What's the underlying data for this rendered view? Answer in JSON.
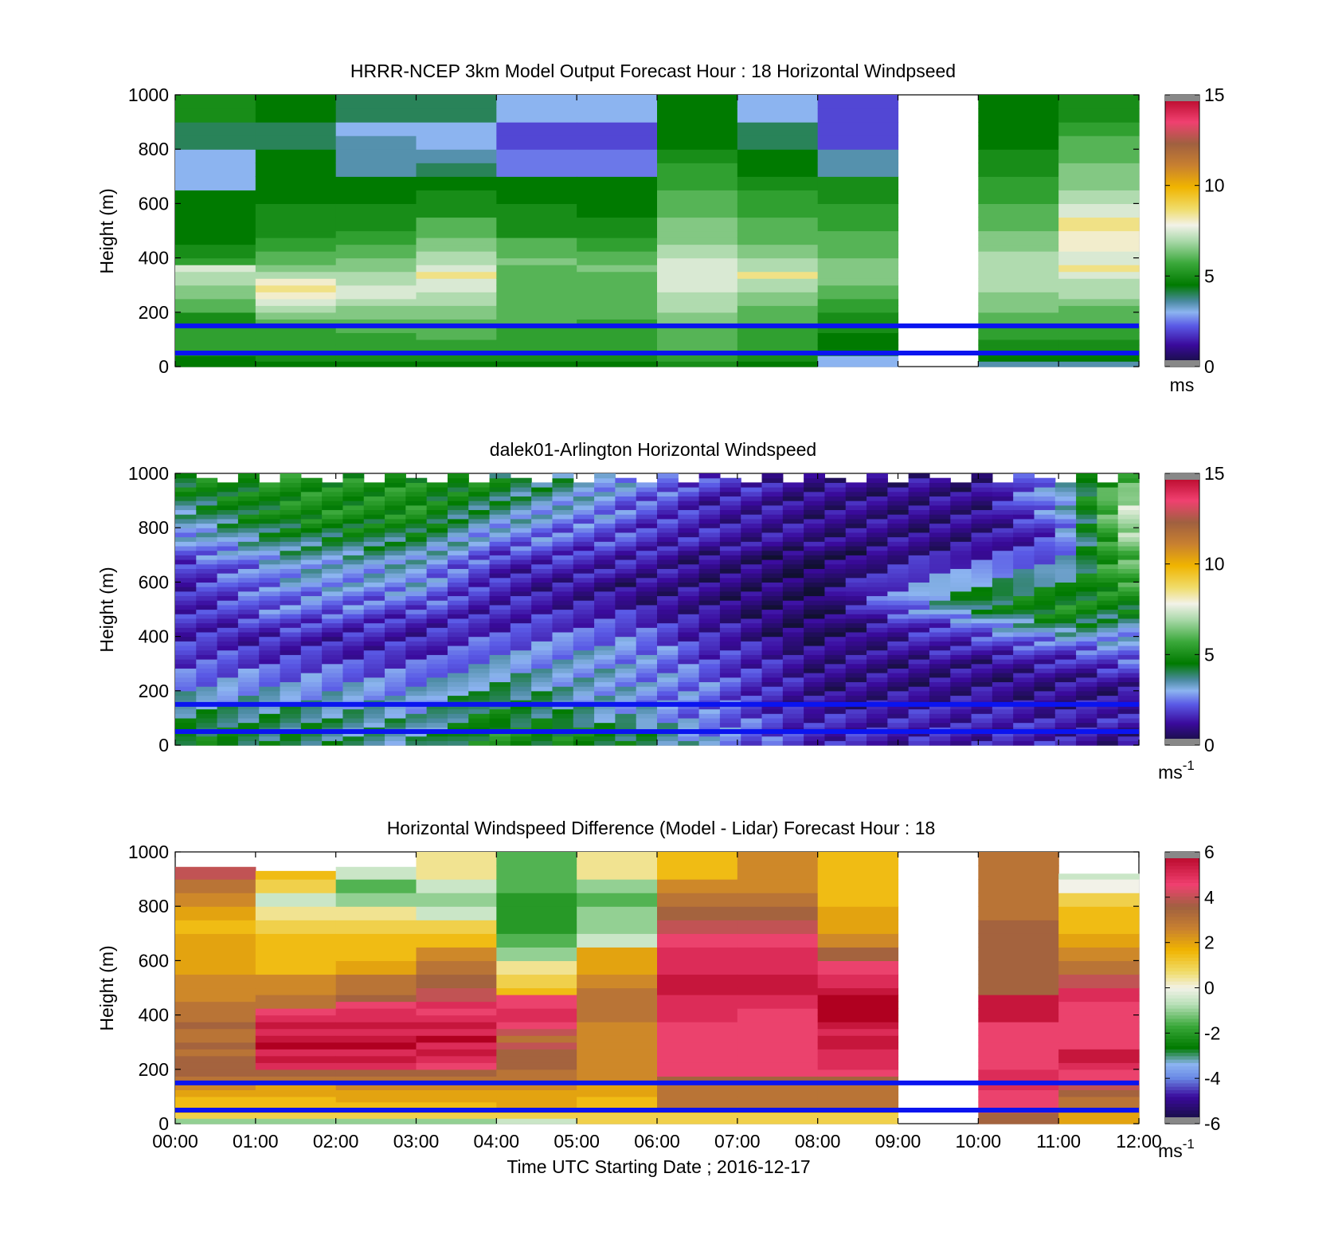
{
  "chart_data": [
    {
      "type": "heatmap",
      "title": "HRRR-NCEP 3km Model Output   Forecast Hour : 18 Horizontal Windpseed",
      "ylabel": "Height (m)",
      "ylim": [
        0,
        1000
      ],
      "yticks": [
        "0",
        "200",
        "400",
        "600",
        "800",
        "1000"
      ],
      "x": [
        "00:00",
        "01:00",
        "02:00",
        "03:00",
        "04:00",
        "05:00",
        "06:00",
        "07:00",
        "08:00",
        "09:00",
        "10:00",
        "11:00",
        "12:00"
      ],
      "xticklabels_shown": false,
      "height_levels": [
        20,
        40,
        60,
        80,
        100,
        125,
        150,
        175,
        200,
        225,
        250,
        275,
        300,
        325,
        350,
        375,
        400,
        425,
        450,
        475,
        500,
        550,
        600,
        650,
        700,
        750,
        800,
        850,
        900,
        950,
        1000
      ],
      "values": [
        [
          4.5,
          4.5,
          5.0,
          5.5,
          5.5,
          5.5,
          5.5,
          5.0,
          5.0,
          6.0,
          6.0,
          6.5,
          6.5,
          7.0,
          7.0,
          7.5,
          5.5,
          5.0,
          5.0,
          4.5,
          4.5,
          4.5,
          4.5,
          4.5,
          3.0,
          3.0,
          3.0,
          4.0,
          4.0,
          5.0,
          5.0
        ],
        [
          4.5,
          5.0,
          5.0,
          5.5,
          5.5,
          5.5,
          5.5,
          6.0,
          6.5,
          7.0,
          7.5,
          8.0,
          8.5,
          8.0,
          7.0,
          6.5,
          6.0,
          6.0,
          5.5,
          5.5,
          5.0,
          5.0,
          5.0,
          4.5,
          4.5,
          4.5,
          4.5,
          4.0,
          4.0,
          4.5,
          4.5
        ],
        [
          4.5,
          5.0,
          5.0,
          5.5,
          5.5,
          5.5,
          6.0,
          6.0,
          6.5,
          6.5,
          7.0,
          7.5,
          7.5,
          7.0,
          7.0,
          6.5,
          6.5,
          6.0,
          6.0,
          5.5,
          5.5,
          5.0,
          5.0,
          4.5,
          4.5,
          3.5,
          3.5,
          3.5,
          3.0,
          4.0,
          4.0
        ],
        [
          4.5,
          5.0,
          5.0,
          5.5,
          5.5,
          6.0,
          6.0,
          6.0,
          6.5,
          6.5,
          7.0,
          7.0,
          7.5,
          7.5,
          8.5,
          7.5,
          7.0,
          7.0,
          6.5,
          6.5,
          6.0,
          6.0,
          5.0,
          5.0,
          4.5,
          4.0,
          3.5,
          3.0,
          3.0,
          4.0,
          4.0
        ],
        [
          4.5,
          5.0,
          5.0,
          5.5,
          5.5,
          5.5,
          5.5,
          6.0,
          6.0,
          6.0,
          6.0,
          6.0,
          6.0,
          6.0,
          6.0,
          6.0,
          6.5,
          6.0,
          6.0,
          6.0,
          5.0,
          5.0,
          5.0,
          4.5,
          4.5,
          2.5,
          2.5,
          2.0,
          2.0,
          3.0,
          3.0
        ],
        [
          4.5,
          5.0,
          5.0,
          5.5,
          5.5,
          5.5,
          5.5,
          5.5,
          6.0,
          6.0,
          6.0,
          6.0,
          6.0,
          6.0,
          6.0,
          6.5,
          6.0,
          6.0,
          5.5,
          5.5,
          5.0,
          5.0,
          4.5,
          4.5,
          4.5,
          2.5,
          2.5,
          2.0,
          2.0,
          3.0,
          3.0
        ],
        [
          5.0,
          5.5,
          5.5,
          6.0,
          6.0,
          6.0,
          6.0,
          6.5,
          6.5,
          7.0,
          7.0,
          7.0,
          7.5,
          7.5,
          7.5,
          7.5,
          7.5,
          7.0,
          7.0,
          6.5,
          6.5,
          6.5,
          6.0,
          6.0,
          5.5,
          5.5,
          5.0,
          4.5,
          4.5,
          4.5,
          4.5
        ],
        [
          4.5,
          5.0,
          5.0,
          5.5,
          5.5,
          5.5,
          5.5,
          6.0,
          6.0,
          6.0,
          6.5,
          6.5,
          7.0,
          7.0,
          8.5,
          7.0,
          7.0,
          6.5,
          6.5,
          6.0,
          6.0,
          6.0,
          5.5,
          5.5,
          5.0,
          4.5,
          4.5,
          4.0,
          4.0,
          3.0,
          3.0
        ],
        [
          3.0,
          3.0,
          4.0,
          4.5,
          4.5,
          4.5,
          5.0,
          5.0,
          5.0,
          5.5,
          5.5,
          6.0,
          6.0,
          6.5,
          6.5,
          6.5,
          6.5,
          6.0,
          6.0,
          6.0,
          6.0,
          5.5,
          5.5,
          5.0,
          5.0,
          3.5,
          3.5,
          2.0,
          2.0,
          2.0,
          2.0
        ],
        null,
        [
          3.5,
          4.5,
          4.5,
          5.0,
          5.0,
          5.5,
          5.5,
          6.0,
          6.0,
          6.5,
          6.5,
          6.5,
          7.0,
          7.0,
          7.0,
          7.0,
          7.0,
          7.0,
          6.5,
          6.5,
          6.5,
          6.0,
          6.0,
          5.5,
          5.5,
          5.0,
          5.0,
          4.5,
          4.5,
          4.5,
          4.5
        ],
        [
          3.5,
          4.5,
          4.5,
          5.0,
          5.0,
          5.5,
          5.5,
          6.0,
          6.0,
          6.0,
          6.5,
          7.0,
          7.0,
          7.0,
          7.5,
          8.5,
          7.5,
          7.5,
          8.0,
          8.0,
          8.0,
          8.5,
          7.5,
          7.0,
          6.5,
          6.5,
          6.0,
          6.0,
          5.5,
          5.0,
          5.0
        ]
      ],
      "hlines_m": [
        50,
        150
      ],
      "colorbar": {
        "min": 0,
        "max": 15,
        "ticks": [
          "0",
          "5",
          "10",
          "15"
        ],
        "unit": "ms"
      }
    },
    {
      "type": "heatmap",
      "title": "dalek01-Arlington  Horizontal Windspeed",
      "ylabel": "Height (m)",
      "ylim": [
        0,
        1000
      ],
      "yticks": [
        "0",
        "200",
        "400",
        "600",
        "800",
        "1000"
      ],
      "xticklabels_shown": false,
      "description_cols": 46,
      "anchor_profiles": [
        {
          "t": 0.0,
          "v": [
            5.0,
            4.5,
            4.0,
            3.5,
            3.0,
            2.5,
            2.0,
            2.0,
            1.5,
            1.5,
            1.5,
            1.5,
            1.5,
            1.5,
            2.0,
            2.5,
            3.0,
            3.5,
            4.0,
            4.5,
            4.5
          ]
        },
        {
          "t": 1.5,
          "v": [
            4.0,
            4.0,
            4.0,
            3.5,
            3.0,
            2.5,
            2.0,
            1.5,
            1.5,
            2.0,
            2.5,
            2.5,
            3.0,
            3.0,
            3.5,
            4.0,
            4.5,
            5.0,
            5.0,
            5.0,
            5.0
          ]
        },
        {
          "t": 3.0,
          "v": [
            3.5,
            3.5,
            3.5,
            3.0,
            3.0,
            2.5,
            2.0,
            1.5,
            1.5,
            1.5,
            2.0,
            2.5,
            3.0,
            3.0,
            3.5,
            4.0,
            4.5,
            5.0,
            5.0,
            5.0,
            5.0
          ]
        },
        {
          "t": 4.0,
          "v": [
            5.0,
            5.0,
            4.5,
            4.5,
            4.0,
            3.5,
            3.0,
            2.5,
            2.0,
            1.5,
            1.5,
            1.5,
            1.5,
            1.5,
            2.0,
            2.5,
            3.0,
            3.5,
            4.0,
            4.5,
            4.5
          ]
        },
        {
          "t": 5.5,
          "v": [
            4.5,
            4.5,
            3.5,
            3.0,
            3.0,
            3.0,
            3.0,
            3.0,
            2.5,
            2.0,
            1.5,
            1.0,
            1.0,
            1.5,
            1.5,
            2.0,
            2.0,
            2.5,
            2.5,
            3.0,
            3.0
          ]
        },
        {
          "t": 6.5,
          "v": [
            3.0,
            3.0,
            2.5,
            2.5,
            2.5,
            2.5,
            2.0,
            2.0,
            1.5,
            1.5,
            1.0,
            1.0,
            1.0,
            1.0,
            1.0,
            1.5,
            1.5,
            1.5,
            1.5,
            2.0,
            2.0
          ]
        },
        {
          "t": 8.0,
          "v": [
            1.5,
            1.5,
            1.5,
            1.0,
            1.0,
            1.0,
            1.0,
            1.0,
            0.5,
            0.5,
            0.5,
            0.5,
            0.5,
            0.5,
            0.5,
            1.0,
            1.0,
            1.0,
            1.0,
            1.0,
            1.0
          ]
        },
        {
          "t": 10.0,
          "v": [
            1.5,
            1.5,
            1.5,
            1.5,
            1.0,
            1.0,
            1.0,
            1.5,
            2.0,
            2.5,
            4.0,
            4.5,
            3.5,
            2.5,
            1.5,
            1.0,
            1.0,
            1.0,
            1.0,
            1.0,
            1.0
          ]
        },
        {
          "t": 11.0,
          "v": [
            1.5,
            1.5,
            1.5,
            1.0,
            1.0,
            1.0,
            1.5,
            2.0,
            3.0,
            4.5,
            5.0,
            4.5,
            4.0,
            3.0,
            2.5,
            2.0,
            2.0,
            2.5,
            3.0,
            3.0,
            3.0
          ]
        },
        {
          "t": 11.8,
          "v": [
            1.0,
            1.0,
            1.5,
            1.5,
            1.0,
            1.5,
            2.0,
            2.5,
            3.0,
            3.5,
            4.5,
            5.0,
            5.5,
            6.0,
            6.0,
            6.5,
            7.0,
            7.0,
            7.0,
            6.0,
            6.0
          ]
        }
      ],
      "anchor_heights_m": [
        0,
        50,
        100,
        150,
        200,
        250,
        300,
        350,
        400,
        450,
        500,
        550,
        600,
        650,
        700,
        750,
        800,
        850,
        900,
        950,
        1000
      ],
      "hlines_m": [
        50,
        150
      ],
      "colorbar": {
        "min": 0,
        "max": 15,
        "ticks": [
          "0",
          "5",
          "10",
          "15"
        ],
        "unit": "ms",
        "unit_exp": "-1"
      }
    },
    {
      "type": "heatmap",
      "title": "Horizontal Windspeed Difference (Model - Lidar) Forecast Hour : 18",
      "xlabel": "Time UTC  Starting Date ; 2016-12-17",
      "ylabel": "Height (m)",
      "ylim": [
        0,
        1000
      ],
      "yticks": [
        "0",
        "200",
        "400",
        "600",
        "800",
        "1000"
      ],
      "x": [
        "00:00",
        "01:00",
        "02:00",
        "03:00",
        "04:00",
        "05:00",
        "06:00",
        "07:00",
        "08:00",
        "09:00",
        "10:00",
        "11:00",
        "12:00"
      ],
      "height_levels": [
        20,
        40,
        60,
        80,
        100,
        125,
        150,
        175,
        200,
        225,
        250,
        275,
        300,
        325,
        350,
        375,
        400,
        425,
        450,
        475,
        500,
        550,
        600,
        650,
        700,
        750,
        800,
        850,
        900,
        950,
        1000
      ],
      "top_m": [
        945,
        930,
        945,
        1000,
        1000,
        1000,
        1000,
        1000,
        1000,
        null,
        1000,
        920
      ],
      "values": [
        [
          -1.0,
          1.0,
          1.5,
          1.5,
          1.5,
          2.0,
          2.5,
          3.0,
          3.5,
          3.5,
          3.5,
          3.0,
          3.5,
          3.0,
          3.0,
          3.5,
          3.0,
          3.0,
          3.0,
          2.5,
          2.5,
          2.5,
          2.0,
          2.0,
          2.0,
          1.5,
          2.0,
          2.5,
          3.0,
          4.0,
          4.0
        ],
        [
          -1.0,
          1.0,
          1.5,
          1.5,
          1.5,
          2.0,
          2.0,
          3.0,
          3.5,
          5.0,
          5.5,
          5.0,
          6.0,
          5.5,
          5.0,
          5.5,
          5.0,
          4.5,
          3.0,
          3.0,
          2.5,
          2.5,
          1.5,
          1.5,
          1.5,
          1.0,
          0.5,
          -0.5,
          1.0,
          1.5,
          1.5
        ],
        [
          -1.0,
          1.0,
          1.5,
          1.5,
          2.0,
          2.0,
          2.5,
          3.0,
          3.5,
          5.0,
          5.5,
          5.0,
          6.0,
          5.5,
          5.0,
          5.5,
          5.0,
          5.0,
          4.5,
          3.5,
          3.0,
          3.0,
          2.0,
          1.5,
          1.5,
          1.0,
          0.5,
          -1.0,
          -1.5,
          -0.5,
          -0.5
        ],
        [
          -1.0,
          1.0,
          1.5,
          1.5,
          2.0,
          2.0,
          2.5,
          3.0,
          3.5,
          4.5,
          5.0,
          5.5,
          5.0,
          6.0,
          5.0,
          5.5,
          5.0,
          4.5,
          5.0,
          4.0,
          4.0,
          3.5,
          3.0,
          2.5,
          1.5,
          1.0,
          -0.5,
          -1.0,
          -0.5,
          0.5,
          0.5
        ],
        [
          -0.5,
          1.0,
          1.5,
          2.0,
          2.0,
          2.0,
          2.5,
          3.0,
          3.0,
          3.5,
          3.5,
          3.5,
          4.0,
          3.0,
          4.0,
          4.5,
          5.0,
          5.0,
          4.5,
          4.5,
          1.5,
          1.0,
          0.5,
          -1.0,
          -1.5,
          -2.0,
          -2.0,
          -2.0,
          -1.5,
          -1.5,
          -1.5
        ],
        [
          1.0,
          1.0,
          1.5,
          1.5,
          1.5,
          2.0,
          2.0,
          2.5,
          2.5,
          2.5,
          2.5,
          2.5,
          2.5,
          2.5,
          2.5,
          2.5,
          3.0,
          3.0,
          3.0,
          3.0,
          3.0,
          2.5,
          2.0,
          2.0,
          -0.5,
          -1.0,
          -1.0,
          -1.5,
          -1.0,
          0.5,
          0.5
        ],
        [
          1.0,
          1.0,
          1.5,
          3.0,
          3.0,
          3.0,
          3.0,
          3.5,
          4.5,
          4.5,
          4.5,
          4.5,
          4.5,
          4.5,
          4.5,
          4.5,
          5.0,
          5.0,
          5.0,
          5.0,
          5.5,
          5.5,
          5.0,
          5.0,
          4.5,
          4.0,
          3.5,
          3.0,
          2.5,
          1.5,
          1.5
        ],
        [
          1.0,
          1.0,
          1.5,
          3.0,
          3.0,
          3.0,
          3.0,
          3.5,
          4.5,
          4.5,
          4.5,
          4.5,
          4.5,
          4.5,
          4.5,
          4.5,
          4.5,
          4.5,
          5.0,
          5.0,
          5.5,
          5.5,
          5.0,
          5.0,
          4.5,
          4.0,
          3.5,
          3.0,
          2.5,
          2.5,
          2.5
        ],
        [
          1.0,
          1.0,
          1.5,
          3.0,
          3.0,
          3.0,
          3.0,
          3.5,
          4.5,
          5.0,
          5.0,
          5.0,
          5.5,
          5.5,
          5.0,
          5.5,
          6.0,
          6.0,
          6.0,
          6.0,
          5.5,
          5.0,
          4.5,
          3.5,
          2.5,
          2.0,
          2.0,
          1.5,
          1.5,
          1.5,
          1.5
        ],
        null,
        [
          3.5,
          3.5,
          4.0,
          4.5,
          4.5,
          4.5,
          5.0,
          5.0,
          5.0,
          4.5,
          4.5,
          4.5,
          4.5,
          4.5,
          4.5,
          4.5,
          5.5,
          5.5,
          5.5,
          5.5,
          3.5,
          3.5,
          3.5,
          3.5,
          3.5,
          3.5,
          3.0,
          3.0,
          3.0,
          3.0,
          3.0
        ],
        [
          2.0,
          2.0,
          2.5,
          3.0,
          3.0,
          3.5,
          4.0,
          4.5,
          4.5,
          5.0,
          5.5,
          5.5,
          4.5,
          4.5,
          4.5,
          4.5,
          4.5,
          4.5,
          4.5,
          5.0,
          5.0,
          4.0,
          3.0,
          2.5,
          2.0,
          1.5,
          1.5,
          1.0,
          0.0,
          -0.5,
          -0.5
        ]
      ],
      "hlines_m": [
        50,
        150
      ],
      "colorbar": {
        "min": -6,
        "max": 6,
        "ticks": [
          "-6",
          "-4",
          "-2",
          "0",
          "2",
          "4",
          "6"
        ],
        "unit": "ms",
        "unit_exp": "-1"
      }
    }
  ]
}
